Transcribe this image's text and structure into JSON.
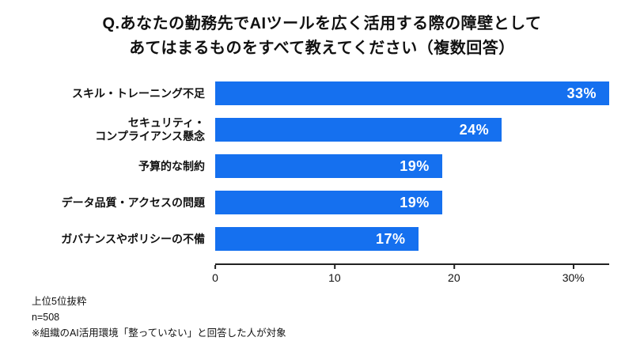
{
  "title": {
    "line1": "Q.あなたの勤務先でAIツールを広く活用する際の障壁として",
    "line2": "あてはまるものをすべて教えてください（複数回答）"
  },
  "chart_data": {
    "type": "bar",
    "orientation": "horizontal",
    "title": "Q.あなたの勤務先でAIツールを広く活用する際の障壁としてあてはまるものをすべて教えてください（複数回答）",
    "categories": [
      "スキル・トレーニング不足",
      "セキュリティ・\nコンプライアンス懸念",
      "予算的な制約",
      "データ品質・アクセスの問題",
      "ガバナンスやポリシーの不備"
    ],
    "values": [
      33,
      24,
      19,
      19,
      17
    ],
    "value_labels": [
      "33%",
      "24%",
      "19%",
      "19%",
      "17%"
    ],
    "xlim": [
      0,
      33
    ],
    "xticks": [
      {
        "value": 0,
        "label": "0"
      },
      {
        "value": 10,
        "label": "10"
      },
      {
        "value": 20,
        "label": "20"
      },
      {
        "value": 30,
        "label": "30%"
      }
    ],
    "bar_color": "#1570EF",
    "value_color": "#ffffff",
    "grid": false,
    "legend": false
  },
  "footer": {
    "line1": "上位5位抜粋",
    "line2": "n=508",
    "line3": "※組織のAI活用環境「整っていない」と回答した人が対象"
  }
}
